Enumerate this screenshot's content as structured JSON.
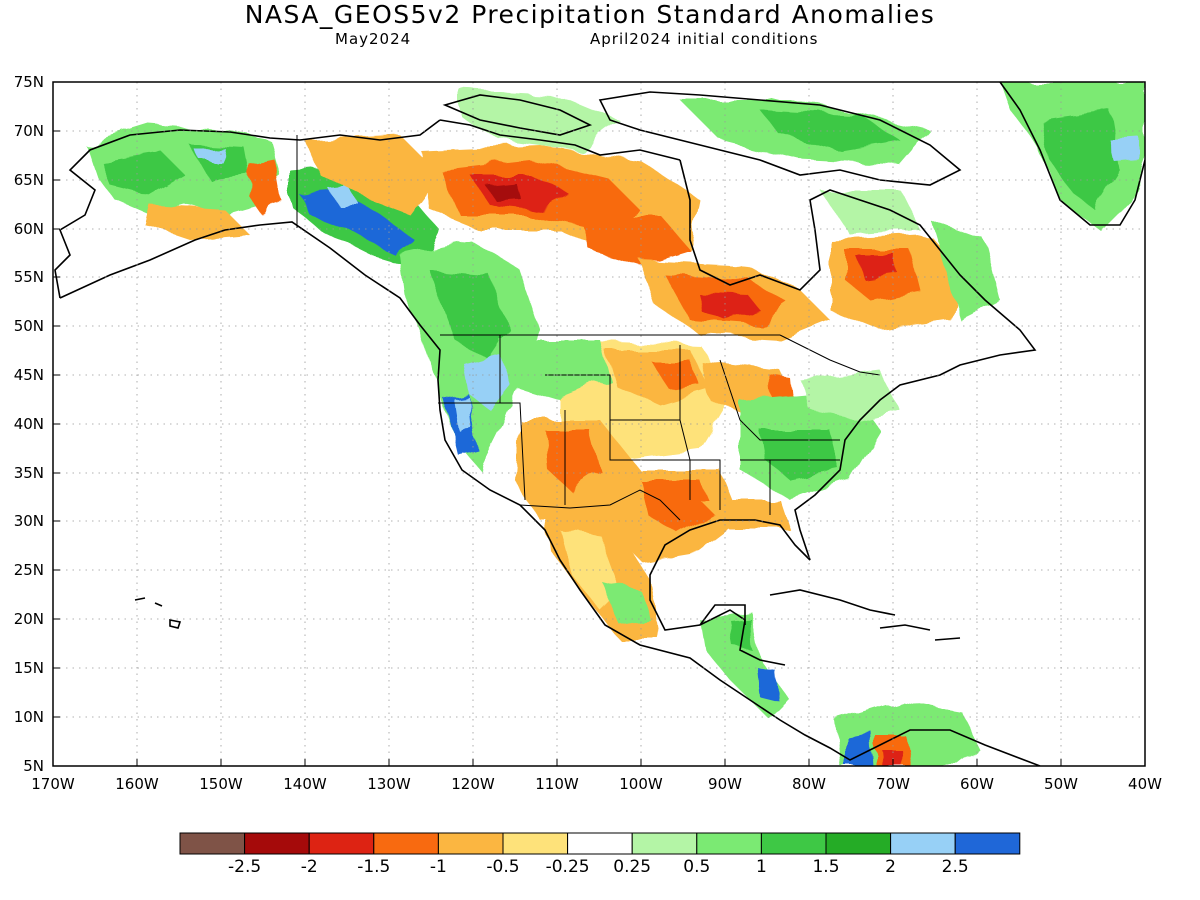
{
  "title": "NASA_GEOS5v2 Precipitation Standard Anomalies",
  "subtitle_left": "May2024",
  "subtitle_right": "April2024 initial conditions",
  "lat_labels": [
    "75N",
    "70N",
    "65N",
    "60N",
    "55N",
    "50N",
    "45N",
    "40N",
    "35N",
    "30N",
    "25N",
    "20N",
    "15N",
    "10N",
    "5N"
  ],
  "lon_labels": [
    "170W",
    "160W",
    "150W",
    "140W",
    "130W",
    "120W",
    "110W",
    "100W",
    "90W",
    "80W",
    "70W",
    "60W",
    "50W",
    "40W"
  ],
  "colorbar": {
    "colors": [
      "#7f5347",
      "#a50a0a",
      "#dd2313",
      "#f86a10",
      "#fbb641",
      "#fee27a",
      "#ffffff",
      "#b4f5a6",
      "#7bea73",
      "#3ec845",
      "#25ac26",
      "#97d0f6",
      "#1f67d8"
    ],
    "labels": [
      "-2.5",
      "-2",
      "-1.5",
      "-1",
      "-0.5",
      "-0.25",
      "0.25",
      "0.5",
      "1",
      "1.5",
      "2",
      "2.5"
    ]
  }
}
